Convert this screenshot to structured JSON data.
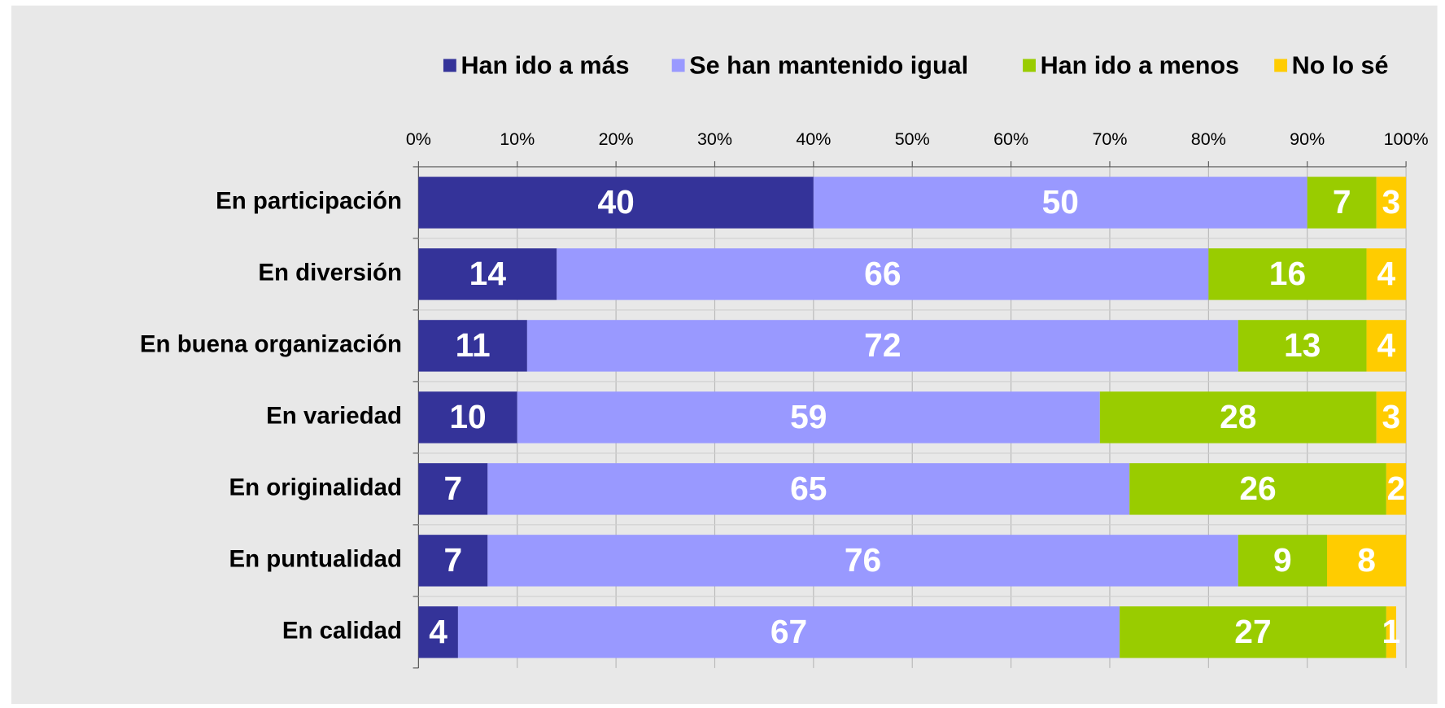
{
  "chart_data": {
    "type": "stacked-bar-horizontal",
    "categories": [
      "En participación",
      "En diversión",
      "En buena organización",
      "En variedad",
      "En originalidad",
      "En puntualidad",
      "En calidad"
    ],
    "series": [
      {
        "name": "Han ido a más",
        "color": "#343399",
        "values": [
          40,
          14,
          11,
          10,
          7,
          7,
          4
        ]
      },
      {
        "name": "Se han mantenido igual",
        "color": "#9999ff",
        "values": [
          50,
          66,
          72,
          59,
          65,
          76,
          67
        ]
      },
      {
        "name": "Han ido a menos",
        "color": "#99cc00",
        "values": [
          7,
          16,
          13,
          28,
          26,
          9,
          27
        ]
      },
      {
        "name": "No lo sé",
        "color": "#ffcc00",
        "values": [
          3,
          4,
          4,
          3,
          2,
          8,
          1
        ]
      }
    ],
    "xlim": [
      0,
      100
    ],
    "xticks": [
      {
        "value": 0,
        "label": "0%"
      },
      {
        "value": 10,
        "label": "10%"
      },
      {
        "value": 20,
        "label": "20%"
      },
      {
        "value": 30,
        "label": "30%"
      },
      {
        "value": 40,
        "label": "40%"
      },
      {
        "value": 50,
        "label": "50%"
      },
      {
        "value": 60,
        "label": "60%"
      },
      {
        "value": 70,
        "label": "70%"
      },
      {
        "value": 80,
        "label": "80%"
      },
      {
        "value": 90,
        "label": "90%"
      },
      {
        "value": 100,
        "label": "100%"
      }
    ],
    "grid": true,
    "legend": "top"
  }
}
